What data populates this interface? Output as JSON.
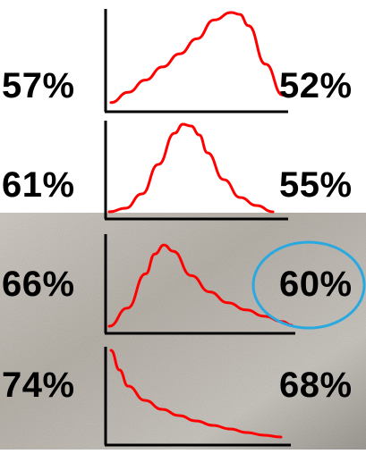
{
  "chart_data": [
    {
      "type": "line",
      "left_label": "57%",
      "right_label": "52%",
      "x": [
        0,
        0.1,
        0.2,
        0.3,
        0.4,
        0.5,
        0.6,
        0.7,
        0.75,
        0.8,
        0.9,
        1.0
      ],
      "y": [
        0.04,
        0.15,
        0.28,
        0.42,
        0.56,
        0.72,
        0.92,
        1.0,
        0.98,
        0.86,
        0.45,
        0.12
      ],
      "curve_color": "#ff0000"
    },
    {
      "type": "line",
      "left_label": "61%",
      "right_label": "55%",
      "x": [
        0,
        0.1,
        0.2,
        0.3,
        0.4,
        0.45,
        0.5,
        0.55,
        0.6,
        0.7,
        0.8,
        0.9,
        1.0
      ],
      "y": [
        0.02,
        0.06,
        0.22,
        0.55,
        0.9,
        1.0,
        0.98,
        0.88,
        0.68,
        0.38,
        0.18,
        0.09,
        0.02
      ],
      "curve_color": "#ff0000"
    },
    {
      "type": "line",
      "left_label": "66%",
      "right_label": "60%",
      "right_label_highlighted": true,
      "x": [
        0,
        0.1,
        0.2,
        0.25,
        0.3,
        0.35,
        0.45,
        0.55,
        0.65,
        0.75,
        0.85,
        0.95,
        1.0
      ],
      "y": [
        0.02,
        0.22,
        0.6,
        0.82,
        0.92,
        0.85,
        0.58,
        0.4,
        0.28,
        0.2,
        0.13,
        0.07,
        0.03
      ],
      "curve_color": "#ff0000"
    },
    {
      "type": "line",
      "left_label": "74%",
      "right_label": "68%",
      "x": [
        0,
        0.05,
        0.1,
        0.2,
        0.3,
        0.4,
        0.5,
        0.6,
        0.7,
        0.8,
        0.9,
        1.0
      ],
      "y": [
        1.0,
        0.78,
        0.6,
        0.44,
        0.34,
        0.27,
        0.21,
        0.16,
        0.12,
        0.08,
        0.05,
        0.03
      ],
      "curve_color": "#ff0000"
    }
  ],
  "colors": {
    "curve": "#ff0000",
    "axis": "#000000",
    "highlight_ellipse": "#2aa8e0",
    "text": "#000000"
  }
}
